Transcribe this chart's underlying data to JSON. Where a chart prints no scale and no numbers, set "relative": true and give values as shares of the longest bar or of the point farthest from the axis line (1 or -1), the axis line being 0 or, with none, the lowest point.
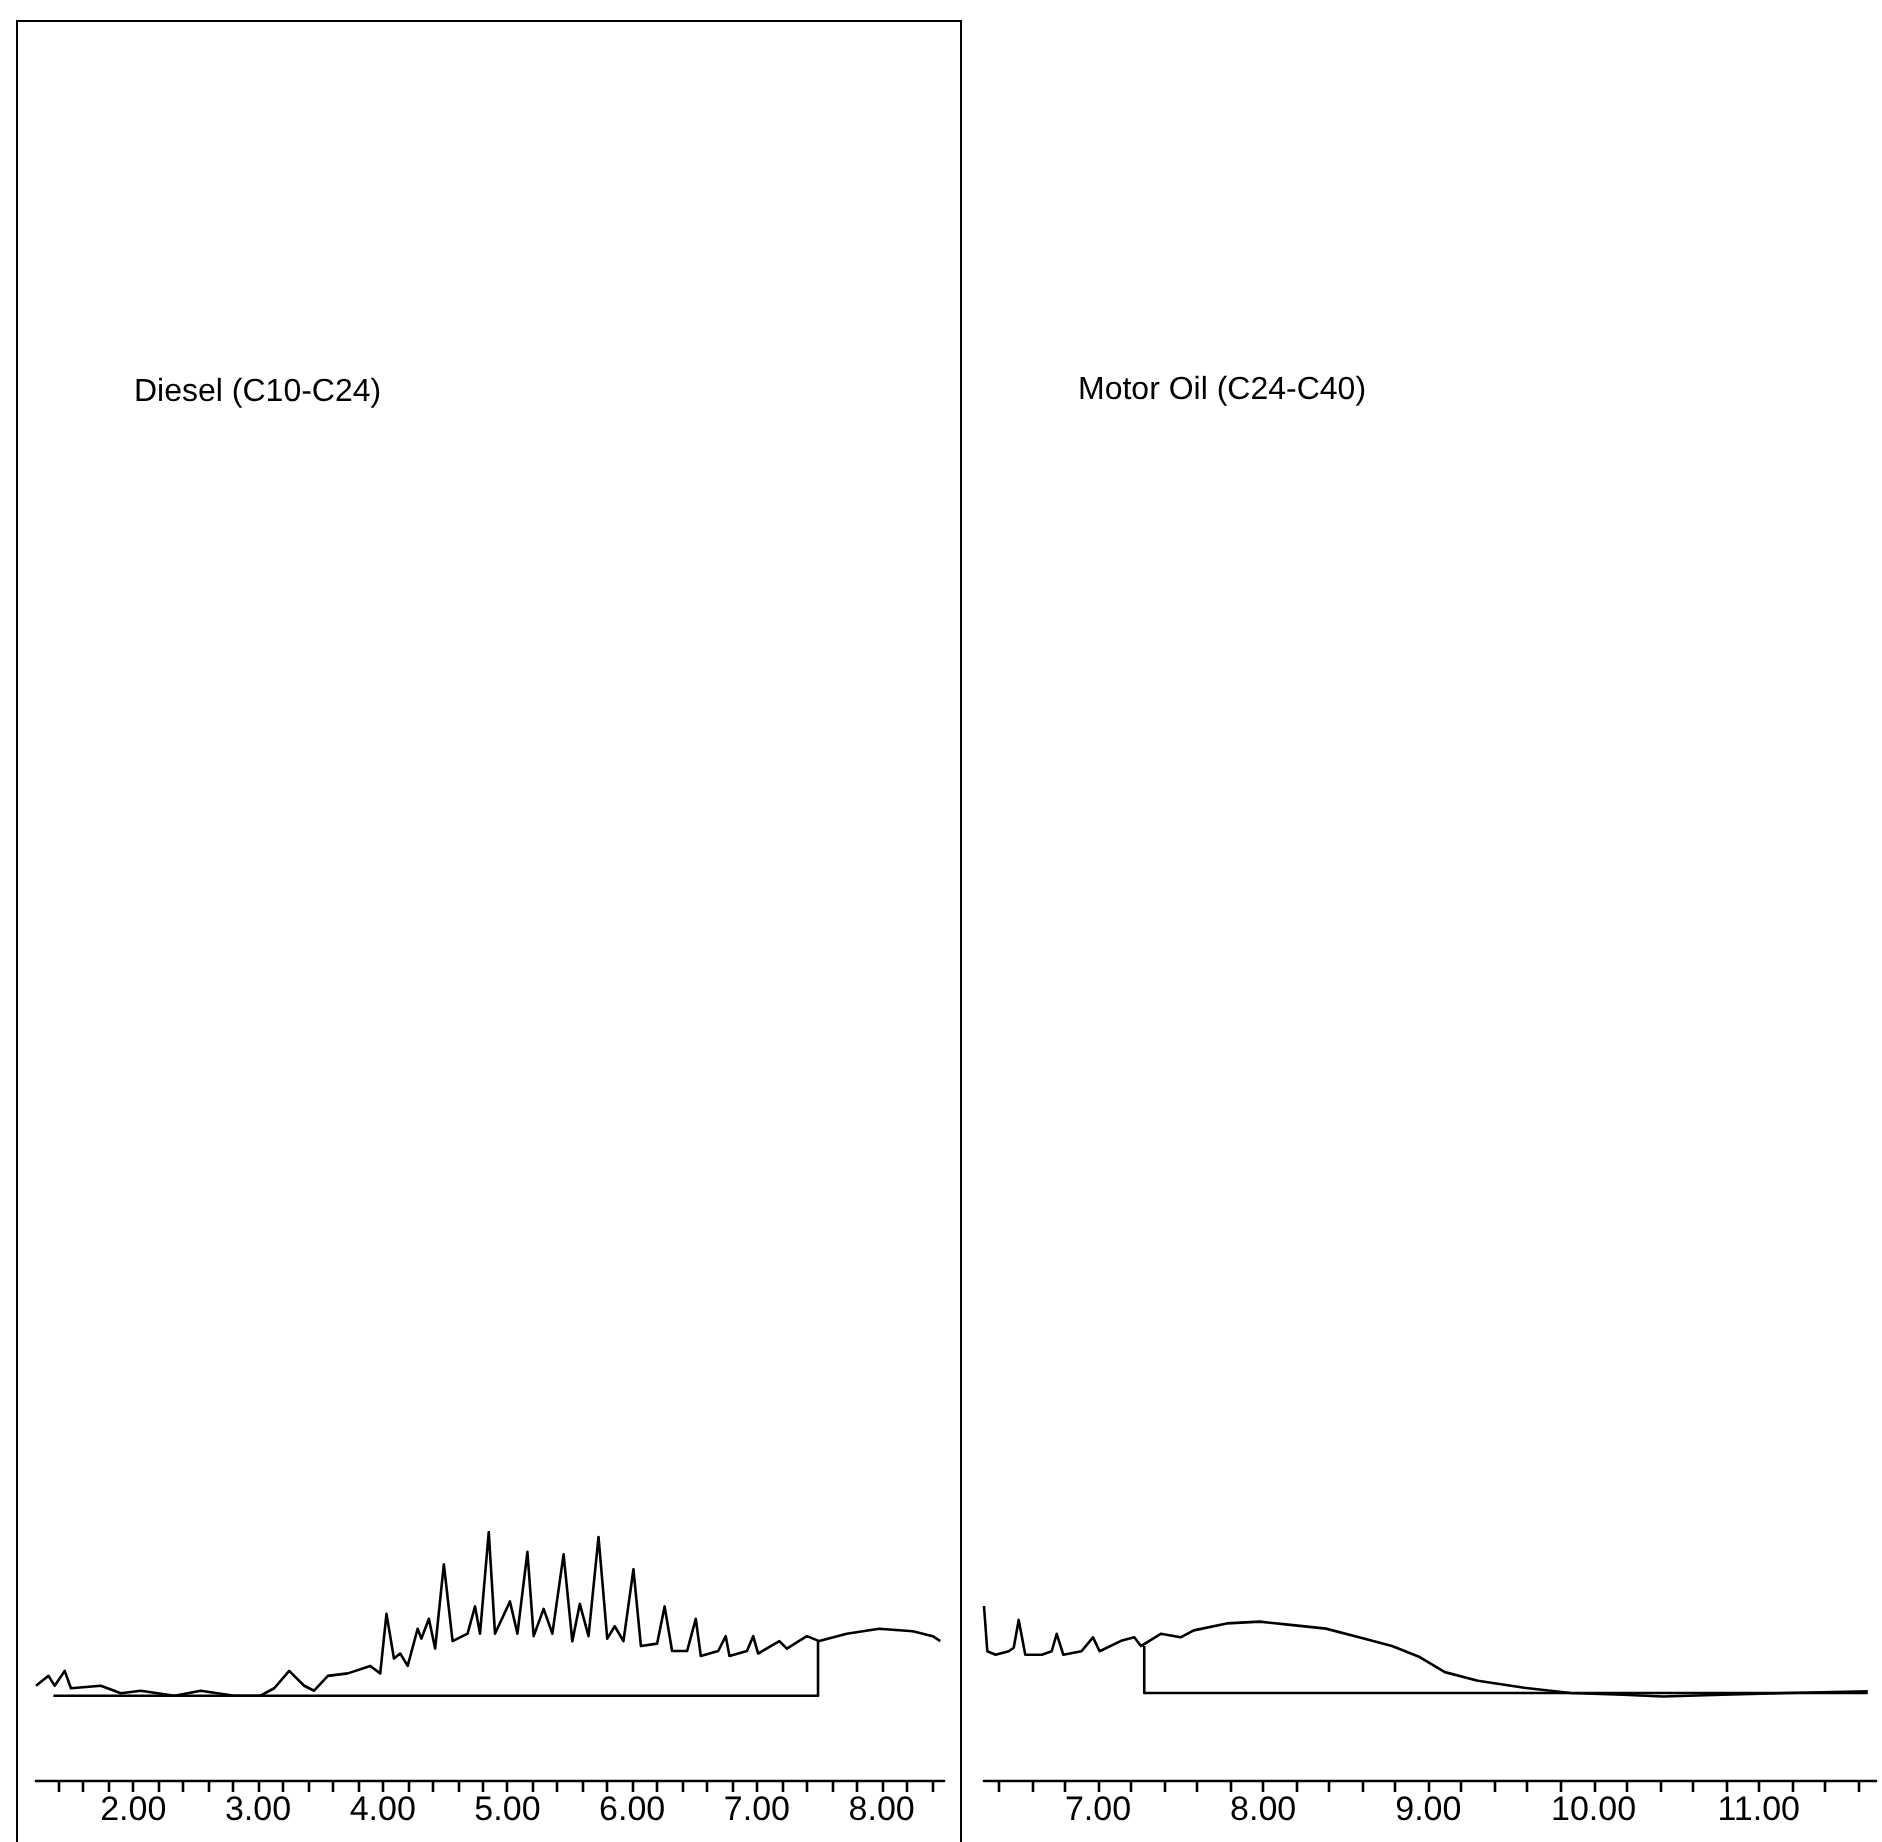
{
  "chart_data": [
    {
      "type": "line",
      "title": "Diesel (C10-C24)",
      "relative": true,
      "tick_labels": "x",
      "grid": false,
      "marker": "none",
      "line_style": "solid",
      "xlim": [
        1.22,
        8.5
      ],
      "xticks": [
        {
          "value": 1.4,
          "label": null
        },
        {
          "value": 1.6,
          "label": null
        },
        {
          "value": 1.8,
          "label": null
        },
        {
          "value": 2,
          "label": "2.00"
        },
        {
          "value": 2.2,
          "label": null
        },
        {
          "value": 2.4,
          "label": null
        },
        {
          "value": 2.6,
          "label": null
        },
        {
          "value": 2.8,
          "label": null
        },
        {
          "value": 3,
          "label": "3.00"
        },
        {
          "value": 3.2,
          "label": null
        },
        {
          "value": 3.4,
          "label": null
        },
        {
          "value": 3.6,
          "label": null
        },
        {
          "value": 3.8,
          "label": null
        },
        {
          "value": 4,
          "label": "4.00"
        },
        {
          "value": 4.2,
          "label": null
        },
        {
          "value": 4.4,
          "label": null
        },
        {
          "value": 4.6,
          "label": null
        },
        {
          "value": 4.8,
          "label": null
        },
        {
          "value": 5,
          "label": "5.00"
        },
        {
          "value": 5.2,
          "label": null
        },
        {
          "value": 5.4,
          "label": null
        },
        {
          "value": 5.6,
          "label": null
        },
        {
          "value": 5.8,
          "label": null
        },
        {
          "value": 6,
          "label": "6.00"
        },
        {
          "value": 6.2,
          "label": null
        },
        {
          "value": 6.4,
          "label": null
        },
        {
          "value": 6.6,
          "label": null
        },
        {
          "value": 6.8,
          "label": null
        },
        {
          "value": 7,
          "label": "7.00"
        },
        {
          "value": 7.2,
          "label": null
        },
        {
          "value": 7.4,
          "label": null
        },
        {
          "value": 7.6,
          "label": null
        },
        {
          "value": 7.8,
          "label": null
        },
        {
          "value": 8,
          "label": "8.00"
        },
        {
          "value": 8.2,
          "label": null
        },
        {
          "value": 8.4,
          "label": null
        }
      ],
      "series": [
        {
          "color": "#000000",
          "x": [
            1.22,
            1.32,
            1.37,
            1.45,
            1.5,
            1.74,
            1.9,
            2.06,
            2.33,
            2.54,
            2.81,
            3.02,
            3.13,
            3.25,
            3.37,
            3.45,
            3.56,
            3.72,
            3.9,
            3.98,
            4.03,
            4.09,
            4.14,
            4.2,
            4.28,
            4.31,
            4.37,
            4.42,
            4.49,
            4.56,
            4.68,
            4.74,
            4.78,
            4.85,
            4.9,
            5.02,
            5.08,
            5.16,
            5.21,
            5.29,
            5.36,
            5.45,
            5.52,
            5.58,
            5.65,
            5.73,
            5.8,
            5.86,
            5.93,
            6.01,
            6.07,
            6.2,
            6.26,
            6.32,
            6.44,
            6.51,
            6.55,
            6.69,
            6.75,
            6.78,
            6.92,
            6.97,
            7.01,
            7.18,
            7.24,
            7.4,
            7.5,
            7.72,
            7.98,
            8.25,
            8.41,
            8.47
          ],
          "values": [
            0.38,
            0.42,
            0.38,
            0.44,
            0.37,
            0.38,
            0.35,
            0.36,
            0.34,
            0.36,
            0.34,
            0.34,
            0.37,
            0.44,
            0.38,
            0.36,
            0.42,
            0.43,
            0.46,
            0.43,
            0.67,
            0.49,
            0.51,
            0.46,
            0.61,
            0.57,
            0.65,
            0.53,
            0.87,
            0.56,
            0.59,
            0.7,
            0.59,
            1,
            0.59,
            0.72,
            0.59,
            0.92,
            0.58,
            0.69,
            0.59,
            0.91,
            0.56,
            0.71,
            0.58,
            0.98,
            0.57,
            0.62,
            0.56,
            0.85,
            0.54,
            0.55,
            0.7,
            0.52,
            0.52,
            0.65,
            0.5,
            0.52,
            0.58,
            0.5,
            0.52,
            0.58,
            0.51,
            0.56,
            0.53,
            0.58,
            0.56,
            0.59,
            0.61,
            0.6,
            0.58,
            0.56
          ]
        },
        {
          "color": "#000000",
          "x": [
            1.36,
            7.49,
            7.49
          ],
          "values": [
            0.34,
            0.34,
            0.56
          ]
        }
      ]
    },
    {
      "type": "line",
      "title": "Motor Oil (C24-C40)",
      "relative": true,
      "tick_labels": "x",
      "grid": false,
      "marker": "none",
      "line_style": "solid",
      "xlim": [
        6.31,
        11.71
      ],
      "xticks": [
        {
          "value": 6.4,
          "label": null
        },
        {
          "value": 6.6,
          "label": null
        },
        {
          "value": 6.8,
          "label": null
        },
        {
          "value": 7,
          "label": "7.00"
        },
        {
          "value": 7.2,
          "label": null
        },
        {
          "value": 7.4,
          "label": null
        },
        {
          "value": 7.6,
          "label": null
        },
        {
          "value": 7.8,
          "label": null
        },
        {
          "value": 8,
          "label": "8.00"
        },
        {
          "value": 8.2,
          "label": null
        },
        {
          "value": 8.4,
          "label": null
        },
        {
          "value": 8.6,
          "label": null
        },
        {
          "value": 8.8,
          "label": null
        },
        {
          "value": 9,
          "label": "9.00"
        },
        {
          "value": 9.2,
          "label": null
        },
        {
          "value": 9.4,
          "label": null
        },
        {
          "value": 9.6,
          "label": null
        },
        {
          "value": 9.8,
          "label": null
        },
        {
          "value": 10,
          "label": "10.00"
        },
        {
          "value": 10.2,
          "label": null
        },
        {
          "value": 10.4,
          "label": null
        },
        {
          "value": 10.6,
          "label": null
        },
        {
          "value": 10.8,
          "label": null
        },
        {
          "value": 11,
          "label": "11.00"
        },
        {
          "value": 11.2,
          "label": null
        },
        {
          "value": 11.4,
          "label": null
        },
        {
          "value": 11.6,
          "label": null
        }
      ],
      "series": [
        {
          "color": "#000000",
          "x": [
            6.31,
            6.33,
            6.38,
            6.46,
            6.49,
            6.52,
            6.56,
            6.66,
            6.72,
            6.75,
            6.79,
            6.9,
            6.97,
            7.01,
            7.14,
            7.22,
            7.26,
            7.38,
            7.5,
            7.58,
            7.78,
            7.98,
            8.18,
            8.38,
            8.58,
            8.78,
            8.94,
            9.1,
            9.3,
            9.58,
            9.86,
            10.18,
            10.42,
            10.78,
            11.18,
            11.66
          ],
          "values": [
            1,
            0.74,
            0.72,
            0.74,
            0.76,
            0.92,
            0.72,
            0.72,
            0.74,
            0.84,
            0.72,
            0.74,
            0.82,
            0.74,
            0.8,
            0.82,
            0.77,
            0.84,
            0.82,
            0.86,
            0.9,
            0.91,
            0.89,
            0.87,
            0.82,
            0.77,
            0.71,
            0.62,
            0.57,
            0.53,
            0.5,
            0.49,
            0.48,
            0.49,
            0.5,
            0.51
          ]
        },
        {
          "color": "#000000",
          "x": [
            7.28,
            7.28,
            11.66
          ],
          "values": [
            0.77,
            0.5,
            0.5
          ]
        }
      ]
    }
  ]
}
